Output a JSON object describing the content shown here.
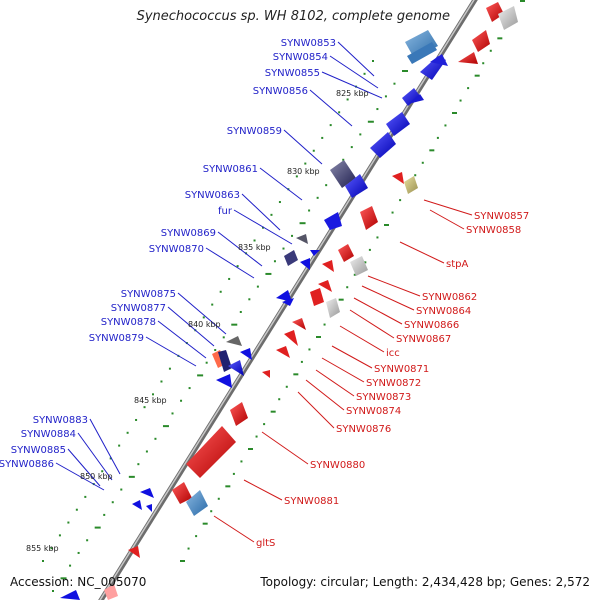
{
  "title": "Synechococcus sp. WH 8102, complete genome",
  "accession": "Accession: NC_005070",
  "topology": "Topology: circular; Length: 2,434,428 bp; Genes: 2,572",
  "ruler": [
    "825 kbp",
    "830 kbp",
    "835 kbp",
    "840 kbp",
    "845 kbp",
    "850 kbp",
    "855 kbp"
  ],
  "left_labels": [
    "SYNW0853",
    "SYNW0854",
    "SYNW0855",
    "SYNW0856",
    "SYNW0859",
    "SYNW0861",
    "SYNW0863",
    "fur",
    "SYNW0869",
    "SYNW0870",
    "SYNW0875",
    "SYNW0877",
    "SYNW0878",
    "SYNW0879",
    "SYNW0883",
    "SYNW0884",
    "SYNW0885",
    "SYNW0886"
  ],
  "right_labels": [
    "SYNW0857",
    "SYNW0858",
    "stpA",
    "SYNW0862",
    "SYNW0864",
    "SYNW0866",
    "SYNW0867",
    "icc",
    "SYNW0871",
    "SYNW0872",
    "SYNW0873",
    "SYNW0874",
    "SYNW0876",
    "SYNW0880",
    "SYNW0881",
    "gltS"
  ],
  "colors": {
    "forward": "#1010e0",
    "reverse": "#e01010",
    "backbone": "#7a7a7a",
    "tick": "#2a8a2a",
    "rna": "#4a80b8",
    "other": "#b8b070"
  }
}
